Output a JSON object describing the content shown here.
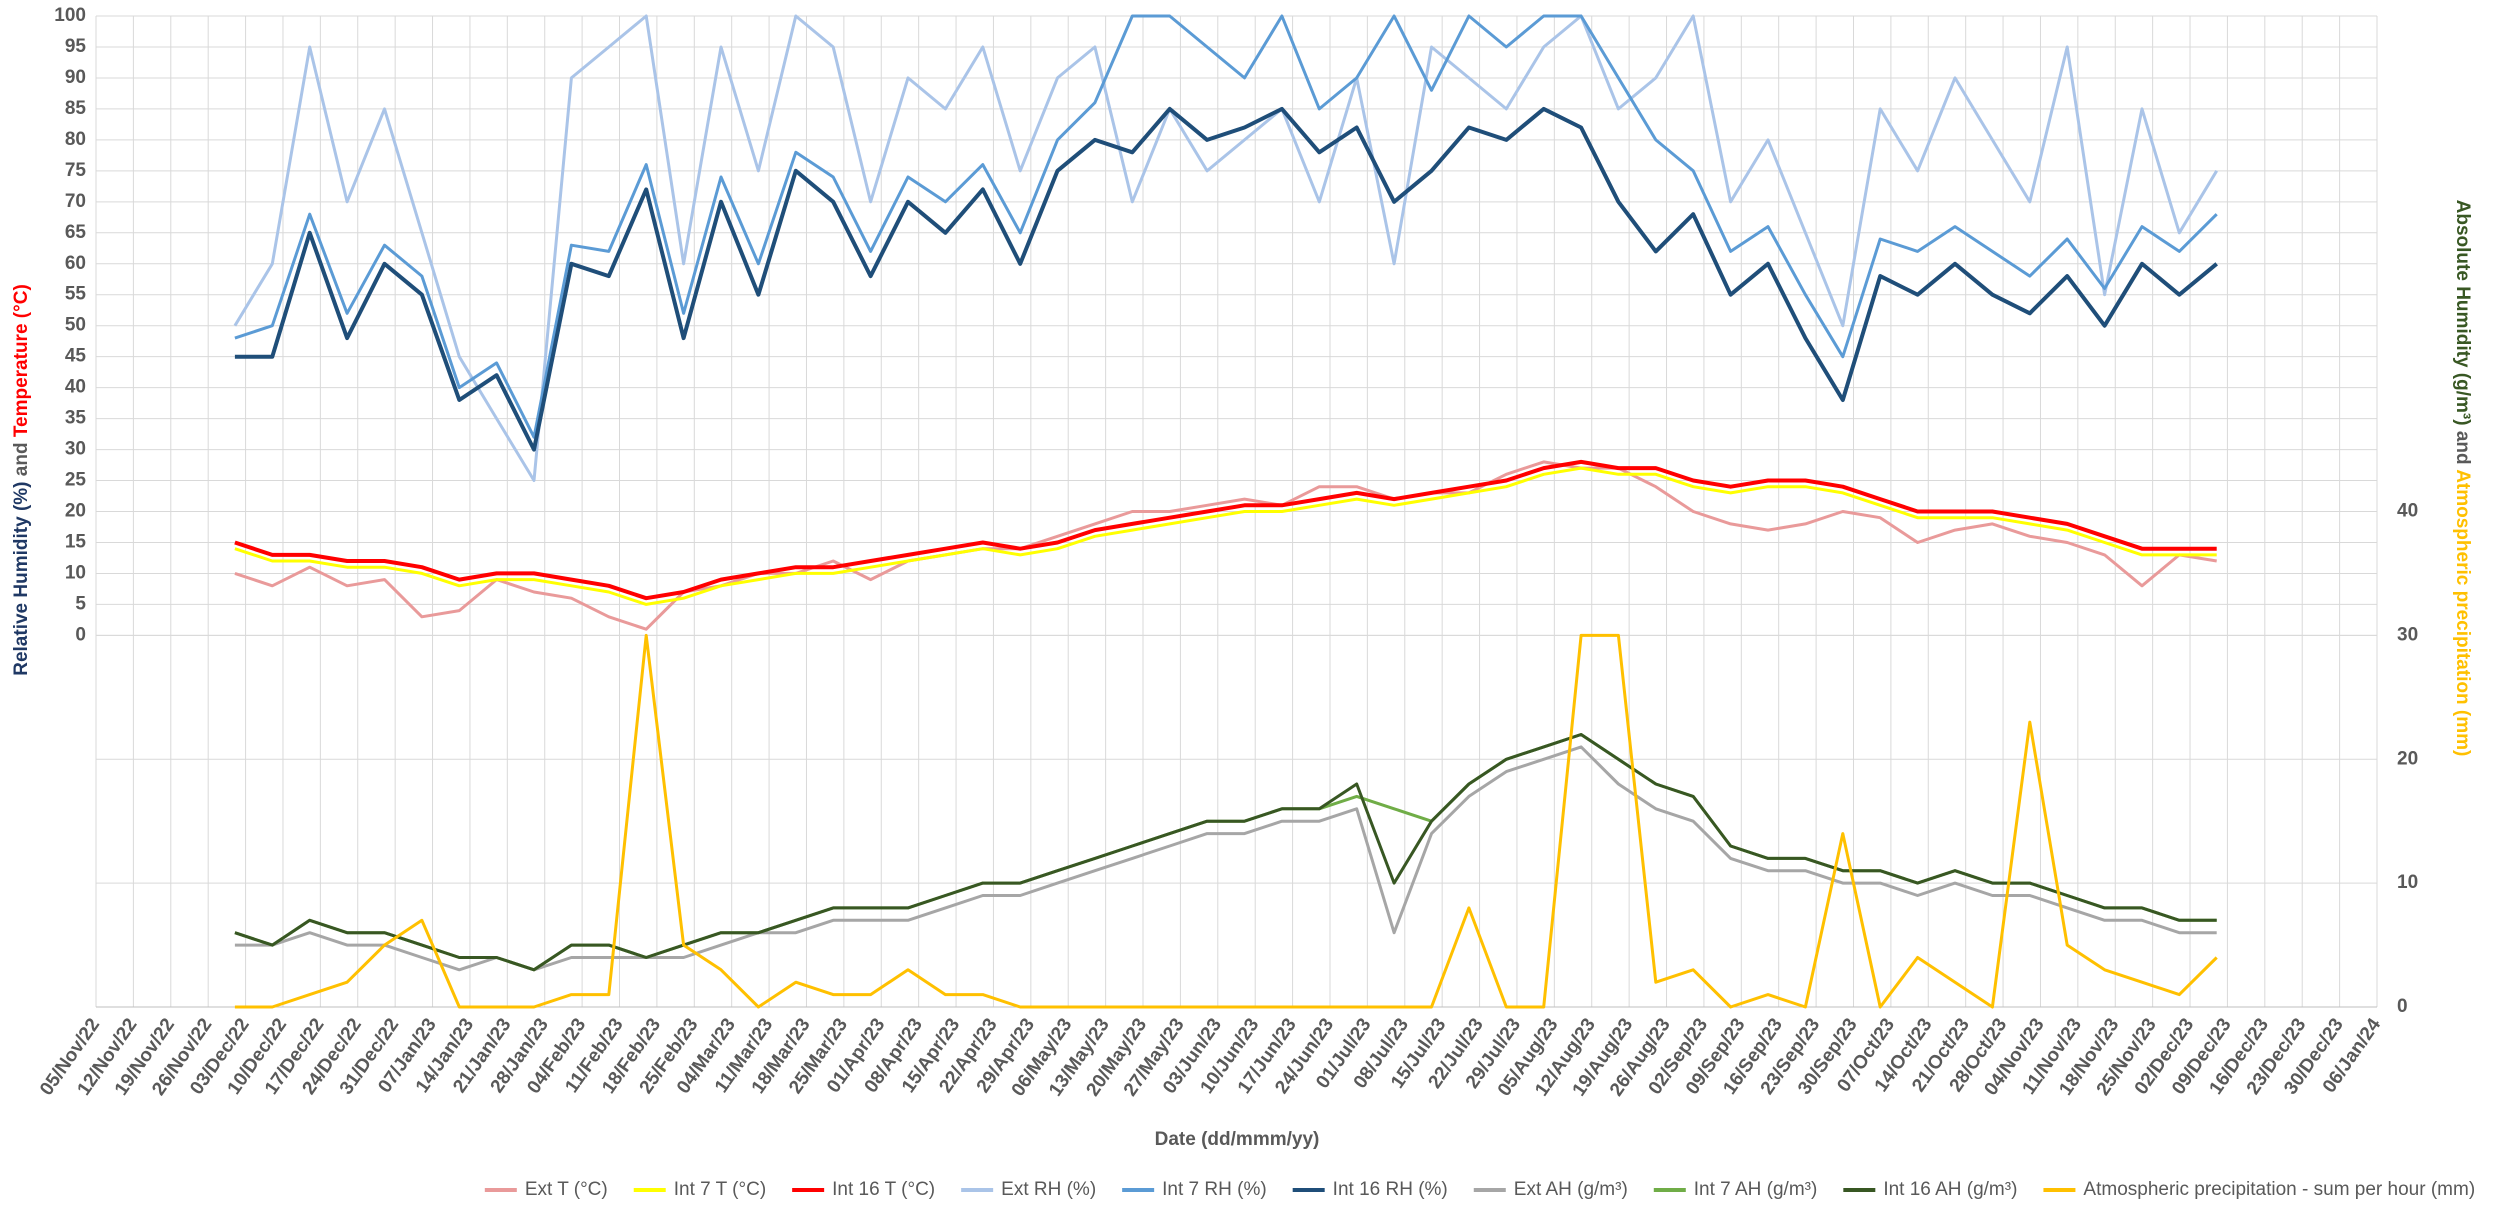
{
  "chart_data": {
    "type": "line",
    "ylabel_parts": [
      "Relative Humidity (%)",
      "and",
      "Temperature (°C)"
    ],
    "y2label_parts": [
      "Absolute Humidity (g/m³)",
      "and",
      "Atmospheric precipitation (mm)"
    ],
    "xlabel": "Date (dd/mmm/yy)",
    "grid": true,
    "legend": "bottom",
    "xlim": [
      "2022-11-05",
      "2024-01-06"
    ],
    "xticks": [
      {
        "value": "2022-11-05",
        "label": "05/Nov/22"
      },
      {
        "value": "2022-11-12",
        "label": "12/Nov/22"
      },
      {
        "value": "2022-11-19",
        "label": "19/Nov/22"
      },
      {
        "value": "2022-11-26",
        "label": "26/Nov/22"
      },
      {
        "value": "2022-12-03",
        "label": "03/Dec/22"
      },
      {
        "value": "2022-12-10",
        "label": "10/Dec/22"
      },
      {
        "value": "2022-12-17",
        "label": "17/Dec/22"
      },
      {
        "value": "2022-12-24",
        "label": "24/Dec/22"
      },
      {
        "value": "2022-12-31",
        "label": "31/Dec/22"
      },
      {
        "value": "2023-01-07",
        "label": "07/Jan/23"
      },
      {
        "value": "2023-01-14",
        "label": "14/Jan/23"
      },
      {
        "value": "2023-01-21",
        "label": "21/Jan/23"
      },
      {
        "value": "2023-01-28",
        "label": "28/Jan/23"
      },
      {
        "value": "2023-02-04",
        "label": "04/Feb/23"
      },
      {
        "value": "2023-02-11",
        "label": "11/Feb/23"
      },
      {
        "value": "2023-02-18",
        "label": "18/Feb/23"
      },
      {
        "value": "2023-02-25",
        "label": "25/Feb/23"
      },
      {
        "value": "2023-03-04",
        "label": "04/Mar/23"
      },
      {
        "value": "2023-03-11",
        "label": "11/Mar/23"
      },
      {
        "value": "2023-03-18",
        "label": "18/Mar/23"
      },
      {
        "value": "2023-03-25",
        "label": "25/Mar/23"
      },
      {
        "value": "2023-04-01",
        "label": "01/Apr/23"
      },
      {
        "value": "2023-04-08",
        "label": "08/Apr/23"
      },
      {
        "value": "2023-04-15",
        "label": "15/Apr/23"
      },
      {
        "value": "2023-04-22",
        "label": "22/Apr/23"
      },
      {
        "value": "2023-04-29",
        "label": "29/Apr/23"
      },
      {
        "value": "2023-05-06",
        "label": "06/May/23"
      },
      {
        "value": "2023-05-13",
        "label": "13/May/23"
      },
      {
        "value": "2023-05-20",
        "label": "20/May/23"
      },
      {
        "value": "2023-05-27",
        "label": "27/May/23"
      },
      {
        "value": "2023-06-03",
        "label": "03/Jun/23"
      },
      {
        "value": "2023-06-10",
        "label": "10/Jun/23"
      },
      {
        "value": "2023-06-17",
        "label": "17/Jun/23"
      },
      {
        "value": "2023-06-24",
        "label": "24/Jun/23"
      },
      {
        "value": "2023-07-01",
        "label": "01/Jul/23"
      },
      {
        "value": "2023-07-08",
        "label": "08/Jul/23"
      },
      {
        "value": "2023-07-15",
        "label": "15/Jul/23"
      },
      {
        "value": "2023-07-22",
        "label": "22/Jul/23"
      },
      {
        "value": "2023-07-29",
        "label": "29/Jul/23"
      },
      {
        "value": "2023-08-05",
        "label": "05/Aug/23"
      },
      {
        "value": "2023-08-12",
        "label": "12/Aug/23"
      },
      {
        "value": "2023-08-19",
        "label": "19/Aug/23"
      },
      {
        "value": "2023-08-26",
        "label": "26/Aug/23"
      },
      {
        "value": "2023-09-02",
        "label": "02/Sep/23"
      },
      {
        "value": "2023-09-09",
        "label": "09/Sep/23"
      },
      {
        "value": "2023-09-16",
        "label": "16/Sep/23"
      },
      {
        "value": "2023-09-23",
        "label": "23/Sep/23"
      },
      {
        "value": "2023-09-30",
        "label": "30/Sep/23"
      },
      {
        "value": "2023-10-07",
        "label": "07/Oct/23"
      },
      {
        "value": "2023-10-14",
        "label": "14/Oct/23"
      },
      {
        "value": "2023-10-21",
        "label": "21/Oct/23"
      },
      {
        "value": "2023-10-28",
        "label": "28/Oct/23"
      },
      {
        "value": "2023-11-04",
        "label": "04/Nov/23"
      },
      {
        "value": "2023-11-11",
        "label": "11/Nov/23"
      },
      {
        "value": "2023-11-18",
        "label": "18/Nov/23"
      },
      {
        "value": "2023-11-25",
        "label": "25/Nov/23"
      },
      {
        "value": "2023-12-02",
        "label": "02/Dec/23"
      },
      {
        "value": "2023-12-09",
        "label": "09/Dec/23"
      },
      {
        "value": "2023-12-16",
        "label": "16/Dec/23"
      },
      {
        "value": "2023-12-23",
        "label": "23/Dec/23"
      },
      {
        "value": "2023-12-30",
        "label": "30/Dec/23"
      },
      {
        "value": "2024-01-06",
        "label": "06/Jan/24"
      }
    ],
    "ylim": [
      -60,
      100
    ],
    "yticks": [
      0,
      5,
      10,
      15,
      20,
      25,
      30,
      35,
      40,
      45,
      50,
      55,
      60,
      65,
      70,
      75,
      80,
      85,
      90,
      95,
      100
    ],
    "y2lim": [
      0,
      80
    ],
    "y2ticks": [
      0,
      10,
      20,
      30,
      40
    ],
    "x": [
      "2022-12-01",
      "2022-12-08",
      "2022-12-15",
      "2022-12-22",
      "2022-12-29",
      "2023-01-05",
      "2023-01-12",
      "2023-01-19",
      "2023-01-26",
      "2023-02-02",
      "2023-02-09",
      "2023-02-16",
      "2023-02-23",
      "2023-03-02",
      "2023-03-09",
      "2023-03-16",
      "2023-03-23",
      "2023-03-30",
      "2023-04-06",
      "2023-04-13",
      "2023-04-20",
      "2023-04-27",
      "2023-05-04",
      "2023-05-11",
      "2023-05-18",
      "2023-05-25",
      "2023-06-01",
      "2023-06-08",
      "2023-06-15",
      "2023-06-22",
      "2023-06-29",
      "2023-07-06",
      "2023-07-13",
      "2023-07-20",
      "2023-07-27",
      "2023-08-03",
      "2023-08-10",
      "2023-08-17",
      "2023-08-24",
      "2023-08-31",
      "2023-09-07",
      "2023-09-14",
      "2023-09-21",
      "2023-09-28",
      "2023-10-05",
      "2023-10-12",
      "2023-10-19",
      "2023-10-26",
      "2023-11-02",
      "2023-11-09",
      "2023-11-16",
      "2023-11-23",
      "2023-11-30",
      "2023-12-07"
    ],
    "series": [
      {
        "name": "Ext T (°C)",
        "color": "#e99a9a",
        "values": [
          10,
          8,
          11,
          8,
          9,
          3,
          4,
          9,
          7,
          6,
          3,
          1,
          7,
          8,
          10,
          10,
          12,
          9,
          12,
          13,
          14,
          14,
          16,
          18,
          20,
          20,
          21,
          22,
          21,
          24,
          24,
          22,
          23,
          23,
          26,
          28,
          27,
          27,
          24,
          20,
          18,
          17,
          18,
          20,
          19,
          15,
          17,
          18,
          16,
          15,
          13,
          8,
          13,
          12
        ]
      },
      {
        "name": "Int 7 T (°C)",
        "color": "#ffff00",
        "values": [
          14,
          12,
          12,
          11,
          11,
          10,
          8,
          9,
          9,
          8,
          7,
          5,
          6,
          8,
          9,
          10,
          10,
          11,
          12,
          13,
          14,
          13,
          14,
          16,
          17,
          18,
          19,
          20,
          20,
          21,
          22,
          21,
          22,
          23,
          24,
          26,
          27,
          26,
          26,
          24,
          23,
          24,
          24,
          23,
          21,
          19,
          19,
          19,
          18,
          17,
          15,
          13,
          13,
          13
        ]
      },
      {
        "name": "Int 16 T (°C)",
        "color": "#ff0000",
        "values": [
          15,
          13,
          13,
          12,
          12,
          11,
          9,
          10,
          10,
          9,
          8,
          6,
          7,
          9,
          10,
          11,
          11,
          12,
          13,
          14,
          15,
          14,
          15,
          17,
          18,
          19,
          20,
          21,
          21,
          22,
          23,
          22,
          23,
          24,
          25,
          27,
          28,
          27,
          27,
          25,
          24,
          25,
          25,
          24,
          22,
          20,
          20,
          20,
          19,
          18,
          16,
          14,
          14,
          14
        ]
      },
      {
        "name": "Ext RH (%)",
        "color": "#aac4e8",
        "values": [
          50,
          60,
          95,
          70,
          85,
          65,
          45,
          35,
          25,
          90,
          95,
          100,
          60,
          95,
          75,
          100,
          95,
          70,
          90,
          85,
          95,
          75,
          90,
          95,
          70,
          85,
          75,
          80,
          85,
          70,
          90,
          60,
          95,
          90,
          85,
          95,
          100,
          85,
          90,
          100,
          70,
          80,
          65,
          50,
          85,
          75,
          90,
          80,
          70,
          95,
          55,
          85,
          65,
          75
        ]
      },
      {
        "name": "Int 7 RH (%)",
        "color": "#5b9bd5",
        "values": [
          48,
          50,
          68,
          52,
          63,
          58,
          40,
          44,
          32,
          63,
          62,
          76,
          52,
          74,
          60,
          78,
          74,
          62,
          74,
          70,
          76,
          65,
          80,
          86,
          100,
          100,
          95,
          90,
          100,
          85,
          90,
          100,
          88,
          100,
          95,
          100,
          100,
          90,
          80,
          75,
          62,
          66,
          55,
          45,
          64,
          62,
          66,
          62,
          58,
          64,
          56,
          66,
          62,
          68
        ]
      },
      {
        "name": "Int 16 RH (%)",
        "color": "#1f4e79",
        "values": [
          45,
          45,
          65,
          48,
          60,
          55,
          38,
          42,
          30,
          60,
          58,
          72,
          48,
          70,
          55,
          75,
          70,
          58,
          70,
          65,
          72,
          60,
          75,
          80,
          78,
          85,
          80,
          82,
          85,
          78,
          82,
          70,
          75,
          82,
          80,
          85,
          82,
          70,
          62,
          68,
          55,
          60,
          48,
          38,
          58,
          55,
          60,
          55,
          52,
          58,
          50,
          60,
          55,
          60
        ]
      },
      {
        "name": "Ext AH (g/m³)",
        "color": "#a6a6a6",
        "axis": "y2",
        "values": [
          5,
          5,
          6,
          5,
          5,
          4,
          3,
          4,
          3,
          4,
          4,
          4,
          4,
          5,
          6,
          6,
          7,
          7,
          7,
          8,
          9,
          9,
          10,
          11,
          12,
          13,
          14,
          14,
          15,
          15,
          16,
          6,
          14,
          17,
          19,
          20,
          21,
          18,
          16,
          15,
          12,
          11,
          11,
          10,
          10,
          9,
          10,
          9,
          9,
          8,
          7,
          7,
          6,
          6
        ]
      },
      {
        "name": "Int 7 AH (g/m³)",
        "color": "#70ad47",
        "axis": "y2",
        "values": [
          6,
          5,
          7,
          6,
          6,
          5,
          4,
          4,
          3,
          5,
          5,
          4,
          5,
          6,
          6,
          7,
          8,
          8,
          8,
          9,
          10,
          10,
          11,
          12,
          13,
          14,
          15,
          15,
          16,
          16,
          17,
          16,
          15,
          18,
          20,
          21,
          22,
          20,
          18,
          17,
          13,
          12,
          12,
          11,
          11,
          10,
          11,
          10,
          10,
          9,
          8,
          8,
          7,
          7
        ]
      },
      {
        "name": "Int 16 AH (g/m³)",
        "color": "#385723",
        "axis": "y2",
        "values": [
          6,
          5,
          7,
          6,
          6,
          5,
          4,
          4,
          3,
          5,
          5,
          4,
          5,
          6,
          6,
          7,
          8,
          8,
          8,
          9,
          10,
          10,
          11,
          12,
          13,
          14,
          15,
          15,
          16,
          16,
          18,
          10,
          15,
          18,
          20,
          21,
          22,
          20,
          18,
          17,
          13,
          12,
          12,
          11,
          11,
          10,
          11,
          10,
          10,
          9,
          8,
          8,
          7,
          7
        ]
      },
      {
        "name": "Atmospheric precipitation - sum per hour (mm)",
        "color": "#ffc000",
        "axis": "y2",
        "values": [
          0,
          0,
          1,
          2,
          5,
          7,
          0,
          0,
          0,
          1,
          1,
          30,
          5,
          3,
          0,
          2,
          1,
          1,
          3,
          1,
          1,
          0,
          0,
          0,
          0,
          0,
          0,
          0,
          0,
          0,
          0,
          0,
          0,
          8,
          0,
          0,
          30,
          30,
          2,
          3,
          0,
          1,
          0,
          14,
          0,
          4,
          2,
          0,
          23,
          5,
          3,
          2,
          1,
          4
        ]
      }
    ]
  }
}
